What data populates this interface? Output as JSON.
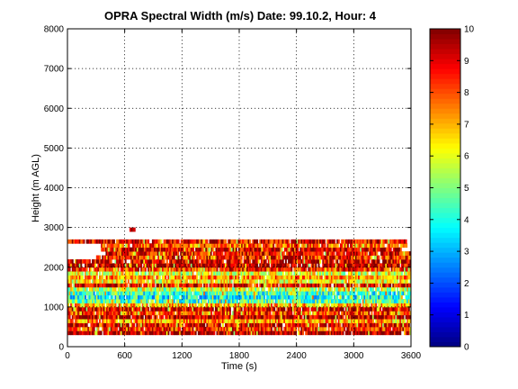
{
  "chart_data": {
    "type": "heatmap",
    "title": "OPRA Spectral Width (m/s)  Date: 99.10.2, Hour: 4",
    "xlabel": "Time (s)",
    "ylabel": "Height (m AGL)",
    "xlim": [
      0,
      3600
    ],
    "ylim": [
      0,
      8000
    ],
    "xticks": [
      "0",
      "600",
      "1200",
      "1800",
      "2400",
      "3000",
      "3600"
    ],
    "xtick_values": [
      0,
      600,
      1200,
      1800,
      2400,
      3000,
      3600
    ],
    "yticks": [
      "0",
      "1000",
      "2000",
      "3000",
      "4000",
      "5000",
      "6000",
      "7000",
      "8000"
    ],
    "ytick_values": [
      0,
      1000,
      2000,
      3000,
      4000,
      5000,
      6000,
      7000,
      8000
    ],
    "grid": true,
    "colorbar": {
      "colormap": "jet",
      "clim": [
        0,
        10
      ],
      "ticks": [
        "0",
        "1",
        "2",
        "3",
        "4",
        "5",
        "6",
        "7",
        "8",
        "9",
        "10"
      ],
      "tick_values": [
        0,
        1,
        2,
        3,
        4,
        5,
        6,
        7,
        8,
        9,
        10
      ]
    },
    "layers": [
      {
        "height_m": 350,
        "typical_value": 9.6,
        "coverage": [
          0,
          3600
        ]
      },
      {
        "height_m": 450,
        "typical_value": 8.5,
        "coverage": [
          0,
          3600
        ]
      },
      {
        "height_m": 550,
        "typical_value": 9.0,
        "coverage": [
          0,
          3600
        ]
      },
      {
        "height_m": 650,
        "typical_value": 7.2,
        "coverage": [
          0,
          3600
        ]
      },
      {
        "height_m": 750,
        "typical_value": 9.4,
        "coverage": [
          0,
          3600
        ]
      },
      {
        "height_m": 850,
        "typical_value": 8.2,
        "coverage": [
          0,
          3600
        ]
      },
      {
        "height_m": 950,
        "typical_value": 9.2,
        "coverage": [
          0,
          3600
        ]
      },
      {
        "height_m": 1050,
        "typical_value": 7.0,
        "coverage": [
          0,
          3600
        ]
      },
      {
        "height_m": 1150,
        "typical_value": 4.5,
        "coverage": [
          0,
          3600
        ]
      },
      {
        "height_m": 1250,
        "typical_value": 3.8,
        "coverage": [
          0,
          3600
        ]
      },
      {
        "height_m": 1350,
        "typical_value": 4.2,
        "coverage": [
          0,
          3600
        ]
      },
      {
        "height_m": 1450,
        "typical_value": 5.6,
        "coverage": [
          0,
          3600
        ]
      },
      {
        "height_m": 1550,
        "typical_value": 9.0,
        "coverage": [
          0,
          3600
        ]
      },
      {
        "height_m": 1650,
        "typical_value": 6.3,
        "coverage": [
          0,
          3600
        ]
      },
      {
        "height_m": 1750,
        "typical_value": 7.4,
        "coverage": [
          0,
          3600
        ]
      },
      {
        "height_m": 1850,
        "typical_value": 6.0,
        "coverage": [
          0,
          3600
        ]
      },
      {
        "height_m": 1950,
        "typical_value": 8.4,
        "coverage": [
          0,
          3600
        ]
      },
      {
        "height_m": 2050,
        "typical_value": 9.5,
        "coverage": [
          0,
          3600
        ]
      },
      {
        "height_m": 2150,
        "typical_value": 9.3,
        "coverage": [
          0,
          3600
        ]
      },
      {
        "height_m": 2250,
        "typical_value": 8.6,
        "coverage": [
          300,
          3600
        ]
      },
      {
        "height_m": 2350,
        "typical_value": 8.8,
        "coverage": [
          400,
          3600
        ]
      },
      {
        "height_m": 2450,
        "typical_value": 9.2,
        "coverage": [
          350,
          3500
        ]
      },
      {
        "height_m": 2550,
        "typical_value": 8.0,
        "coverage": [
          350,
          3550
        ]
      },
      {
        "height_m": 2650,
        "typical_value": 9.0,
        "coverage": [
          0,
          3550
        ]
      },
      {
        "height_m": 2950,
        "typical_value": 9.5,
        "coverage": [
          650,
          700
        ]
      }
    ]
  }
}
